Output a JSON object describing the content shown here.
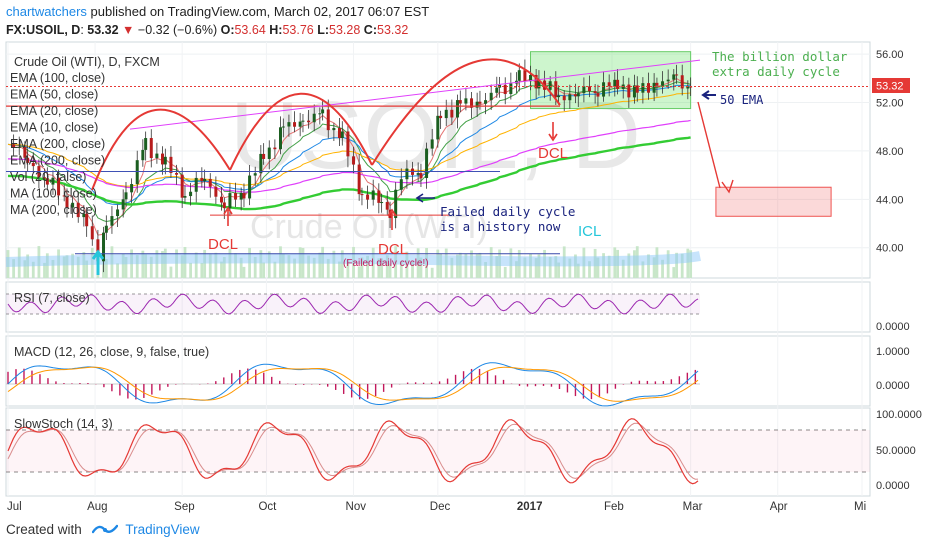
{
  "header": {
    "publisher": "chartwatchers",
    "published_text": "published on TradingView.com, March 02, 2017 06:07 EST",
    "symbol": "FX:USOIL, D",
    "last": "53.32",
    "change_arrow": "▼",
    "change": "−0.32 (−0.6%)",
    "o_label": "O:",
    "o_value": "53.64",
    "h_label": "H:",
    "h_value": "53.76",
    "l_label": "L:",
    "l_value": "53.28",
    "c_label": "C:",
    "c_value": "53.32"
  },
  "legend": {
    "main_title": "Crude Oil (WTI), D, FXCM",
    "items": [
      "EMA (100, close)",
      "EMA (50, close)",
      "EMA (20, close)",
      "EMA (10, close)",
      "EMA (200, close)",
      "EMA (200, close)",
      "Vol (20, false)",
      "MA (100, close)",
      "MA (200, close)"
    ]
  },
  "watermark": {
    "big": "USOIL, D",
    "small": "Crude Oil (WTI)"
  },
  "annotations": {
    "billion_dollar": [
      "The billion dollar",
      "extra daily cycle"
    ],
    "ema50": "50 EMA",
    "dcl": "DCL",
    "icl": "ICL",
    "failed_note": [
      "Failed daily cycle",
      "is a history now"
    ],
    "failed_small": "(Failed daily cycle!)"
  },
  "price_badge": "53.32",
  "colors": {
    "up": "#26a69a",
    "down": "#ef5350",
    "annotation_red": "#e53935",
    "ema200": "#33cc33",
    "rsi": "#9c27b0",
    "macd": "#1e88e5",
    "signal": "#ff9800",
    "hist": "#c2185b",
    "stoch_k": "#e53935",
    "stoch_d": "#d98c8c"
  },
  "panes": {
    "rsi": {
      "title": "RSI (7, close)",
      "ticks": [
        "0.0000"
      ]
    },
    "macd": {
      "title": "MACD (12, 26, close, 9, false, true)",
      "ticks": [
        "1.0000",
        "0.0000"
      ]
    },
    "stoch": {
      "title": "SlowStoch (14, 3)",
      "ticks": [
        "100.0000",
        "50.0000",
        "0.0000"
      ]
    }
  },
  "chart_data": {
    "type": "line",
    "title": "Crude Oil (WTI), D, FXCM",
    "x_ticks": [
      "Jul",
      "Aug",
      "Sep",
      "Oct",
      "Nov",
      "Dec",
      "2017",
      "Feb",
      "Mar",
      "Apr",
      "Mi"
    ],
    "y_ticks": [
      "56.00",
      "52.00",
      "48.00",
      "44.00",
      "40.00"
    ],
    "ylim": [
      37.5,
      57
    ],
    "last_price": 53.32,
    "series": [
      {
        "name": "Crude Oil (WTI)",
        "x": [
          "2016-07-01",
          "2016-07-08",
          "2016-07-15",
          "2016-07-22",
          "2016-07-29",
          "2016-08-02",
          "2016-08-05",
          "2016-08-12",
          "2016-08-19",
          "2016-08-26",
          "2016-09-02",
          "2016-09-09",
          "2016-09-16",
          "2016-09-23",
          "2016-09-30",
          "2016-10-07",
          "2016-10-14",
          "2016-10-21",
          "2016-10-28",
          "2016-11-04",
          "2016-11-11",
          "2016-11-14",
          "2016-11-18",
          "2016-11-25",
          "2016-12-02",
          "2016-12-09",
          "2016-12-16",
          "2016-12-23",
          "2016-12-30",
          "2017-01-06",
          "2017-01-13",
          "2017-01-20",
          "2017-01-27",
          "2017-02-03",
          "2017-02-10",
          "2017-02-17",
          "2017-02-24",
          "2017-03-01"
        ],
        "values": [
          48.9,
          47.2,
          45.5,
          44.0,
          41.8,
          39.5,
          41.5,
          44.5,
          48.5,
          47.0,
          44.5,
          45.8,
          43.5,
          44.8,
          47.5,
          49.8,
          50.5,
          50.9,
          49.0,
          44.5,
          43.8,
          43.2,
          45.8,
          46.5,
          51.0,
          51.8,
          52.0,
          53.0,
          54.0,
          53.8,
          52.5,
          52.8,
          53.2,
          53.5,
          52.8,
          53.6,
          53.9,
          53.3
        ]
      }
    ],
    "zones": [
      {
        "label": "The billion dollar extra daily cycle",
        "x": [
          "2017-01-03",
          "2017-03-01"
        ],
        "y": [
          51.5,
          56.2
        ]
      },
      {
        "label": "",
        "x": [
          "2017-03-10",
          "2017-04-20"
        ],
        "y": [
          42.6,
          45.0
        ]
      }
    ],
    "markers": [
      {
        "label": "DCL",
        "x": "2016-09-20",
        "y": 42.7
      },
      {
        "label": "DCL",
        "x": "2016-11-14",
        "y": 43.0
      },
      {
        "label": "DCL",
        "x": "2017-01-05",
        "y": 50.5
      },
      {
        "label": "ICL",
        "x": "2016-08-02",
        "y": 39.5
      }
    ]
  }
}
